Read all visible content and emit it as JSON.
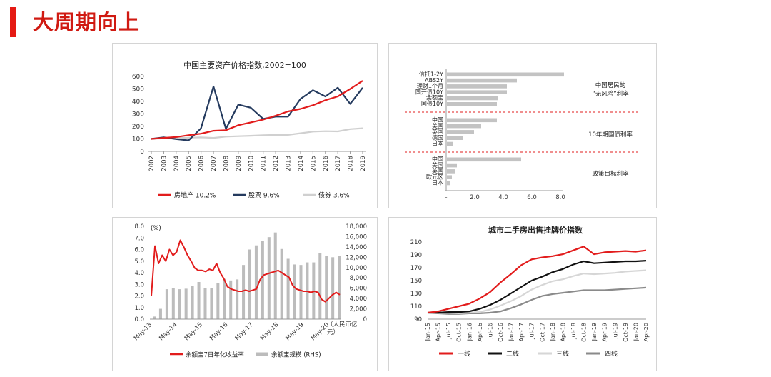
{
  "page": {
    "title": "大周期向上",
    "accent_color": "#d01a12"
  },
  "chart_data": [
    {
      "id": "asset-price-index",
      "type": "line",
      "title": "中国主要资产价格指数,2002=100",
      "xlabel": "",
      "ylabel": "",
      "categories": [
        "2002",
        "2003",
        "2004",
        "2005",
        "2006",
        "2007",
        "2008",
        "2009",
        "2010",
        "2011",
        "2012",
        "2013",
        "2014",
        "2015",
        "2016",
        "2017",
        "2018",
        "2019"
      ],
      "ylim": [
        0,
        600
      ],
      "yticks": [
        "0",
        "100",
        "200",
        "300",
        "400",
        "500",
        "600"
      ],
      "grid": false,
      "legend_position": "bottom",
      "series": [
        {
          "name": "房地产 10.2%",
          "color": "#e21c1c",
          "values": [
            100,
            108,
            115,
            130,
            142,
            165,
            170,
            210,
            232,
            255,
            285,
            320,
            340,
            370,
            410,
            440,
            500,
            565
          ]
        },
        {
          "name": "股票 9.6%",
          "color": "#243a5e",
          "values": [
            100,
            112,
            98,
            88,
            185,
            520,
            180,
            375,
            350,
            260,
            278,
            278,
            420,
            490,
            440,
            510,
            380,
            510
          ]
        },
        {
          "name": "债券 3.6%",
          "color": "#d0d0d0",
          "values": [
            100,
            104,
            106,
            110,
            112,
            108,
            118,
            122,
            125,
            130,
            132,
            132,
            145,
            158,
            162,
            160,
            178,
            185
          ]
        }
      ]
    },
    {
      "id": "risk-free-rates",
      "type": "bar",
      "orientation": "horizontal",
      "categories": [
        "信托1-2Y",
        "ABS2Y",
        "理财1个月",
        "国开债10Y",
        "余额宝",
        "国债10Y",
        "中国",
        "美国",
        "英国",
        "德国",
        "日本",
        "中国",
        "美国",
        "英国",
        "欧元区",
        "日本"
      ],
      "values": [
        8.2,
        4.9,
        4.2,
        4.2,
        3.6,
        3.5,
        3.5,
        2.4,
        1.9,
        1.1,
        0.45,
        5.2,
        0.7,
        0.55,
        0.35,
        0.25
      ],
      "xlim": [
        0,
        8.0
      ],
      "xticks": [
        "-",
        "2.0",
        "4.0",
        "6.0",
        "8.0"
      ],
      "bar_color": "#c3c3c3",
      "group_labels": [
        "中国居民的\n“无风险”利率",
        "10年期国债利率",
        "政策目标利率"
      ],
      "divider_color": "#e21c1c"
    },
    {
      "id": "yuebao",
      "type": "line+bar",
      "x_ticks": [
        "May-13",
        "May-14",
        "May-15",
        "May-16",
        "May-17",
        "May-18",
        "May-19",
        "May-20"
      ],
      "left_axis": {
        "unit": "(%)",
        "ylim": [
          0,
          8.0
        ],
        "ticks": [
          "0.0",
          "1.0",
          "2.0",
          "3.0",
          "4.0",
          "5.0",
          "6.0",
          "7.0",
          "8.0"
        ]
      },
      "right_axis": {
        "unit": "（人民币亿\n元）",
        "ylim": [
          0,
          18000
        ],
        "ticks": [
          "0",
          "2,000",
          "4,000",
          "6,000",
          "8,000",
          "10,000",
          "12,000",
          "14,000",
          "16,000",
          "18,000"
        ]
      },
      "series": [
        {
          "name": "余额宝7日年化收益率",
          "color": "#e21c1c",
          "type": "line",
          "values": [
            2.0,
            6.3,
            4.8,
            5.5,
            5.0,
            6.0,
            5.5,
            5.8,
            6.8,
            6.2,
            5.5,
            5.0,
            4.4,
            4.2,
            4.2,
            4.1,
            4.3,
            4.2,
            4.8,
            4.0,
            3.5,
            2.8,
            2.6,
            2.5,
            2.4,
            2.4,
            2.5,
            2.4,
            2.5,
            2.6,
            3.4,
            3.8,
            3.9,
            4.0,
            4.1,
            4.2,
            4.0,
            3.8,
            3.6,
            2.9,
            2.6,
            2.5,
            2.4,
            2.4,
            2.3,
            2.4,
            2.3,
            1.7,
            1.5,
            1.8,
            2.1,
            2.3,
            2.1
          ]
        },
        {
          "name": "余额宝规模 (RHS)",
          "color": "#bcbcbc",
          "type": "bar",
          "values": [
            500,
            2000,
            5800,
            6000,
            5800,
            5900,
            6500,
            7200,
            6000,
            6000,
            7000,
            7800,
            7500,
            7700,
            10500,
            13500,
            14300,
            15200,
            15900,
            16800,
            13600,
            11700,
            10600,
            10500,
            11000,
            11000,
            12800,
            12300,
            12000,
            12200
          ]
        }
      ]
    },
    {
      "id": "second-hand-house",
      "type": "line",
      "title": "城市二手房出售挂牌价指数",
      "x_ticks": [
        "Jan-15",
        "Apr-15",
        "Jul-15",
        "Oct-15",
        "Jan-16",
        "Apr-16",
        "Jul-16",
        "Oct-16",
        "Jan-17",
        "Apr-17",
        "Jul-17",
        "Oct-17",
        "Jan-18",
        "Apr-18",
        "Jul-18",
        "Oct-18",
        "Jan-19",
        "Apr-19",
        "Jul-19",
        "Oct-19",
        "Jan-20",
        "Apr-20"
      ],
      "ylim": [
        90,
        210
      ],
      "yticks": [
        "90",
        "110",
        "130",
        "150",
        "170",
        "190",
        "210"
      ],
      "legend_position": "bottom",
      "series": [
        {
          "name": "一线",
          "color": "#e21c1c",
          "values": [
            100,
            102,
            106,
            110,
            114,
            122,
            132,
            147,
            160,
            174,
            183,
            186,
            188,
            191,
            197,
            203,
            191,
            194,
            195,
            196,
            195,
            197
          ]
        },
        {
          "name": "二线",
          "color": "#111111",
          "values": [
            100,
            100,
            101,
            101,
            102,
            106,
            112,
            120,
            130,
            140,
            150,
            156,
            163,
            168,
            175,
            180,
            177,
            178,
            179,
            180,
            180,
            181
          ]
        },
        {
          "name": "三线",
          "color": "#d6d6d6",
          "values": [
            100,
            100,
            100,
            99,
            100,
            101,
            105,
            111,
            118,
            126,
            136,
            143,
            149,
            152,
            157,
            161,
            160,
            161,
            162,
            164,
            165,
            166
          ]
        },
        {
          "name": "四线",
          "color": "#8a8a8a",
          "values": [
            100,
            99,
            98,
            98,
            99,
            99,
            100,
            102,
            107,
            113,
            120,
            126,
            129,
            131,
            133,
            135,
            135,
            135,
            136,
            137,
            138,
            139
          ]
        }
      ]
    }
  ]
}
